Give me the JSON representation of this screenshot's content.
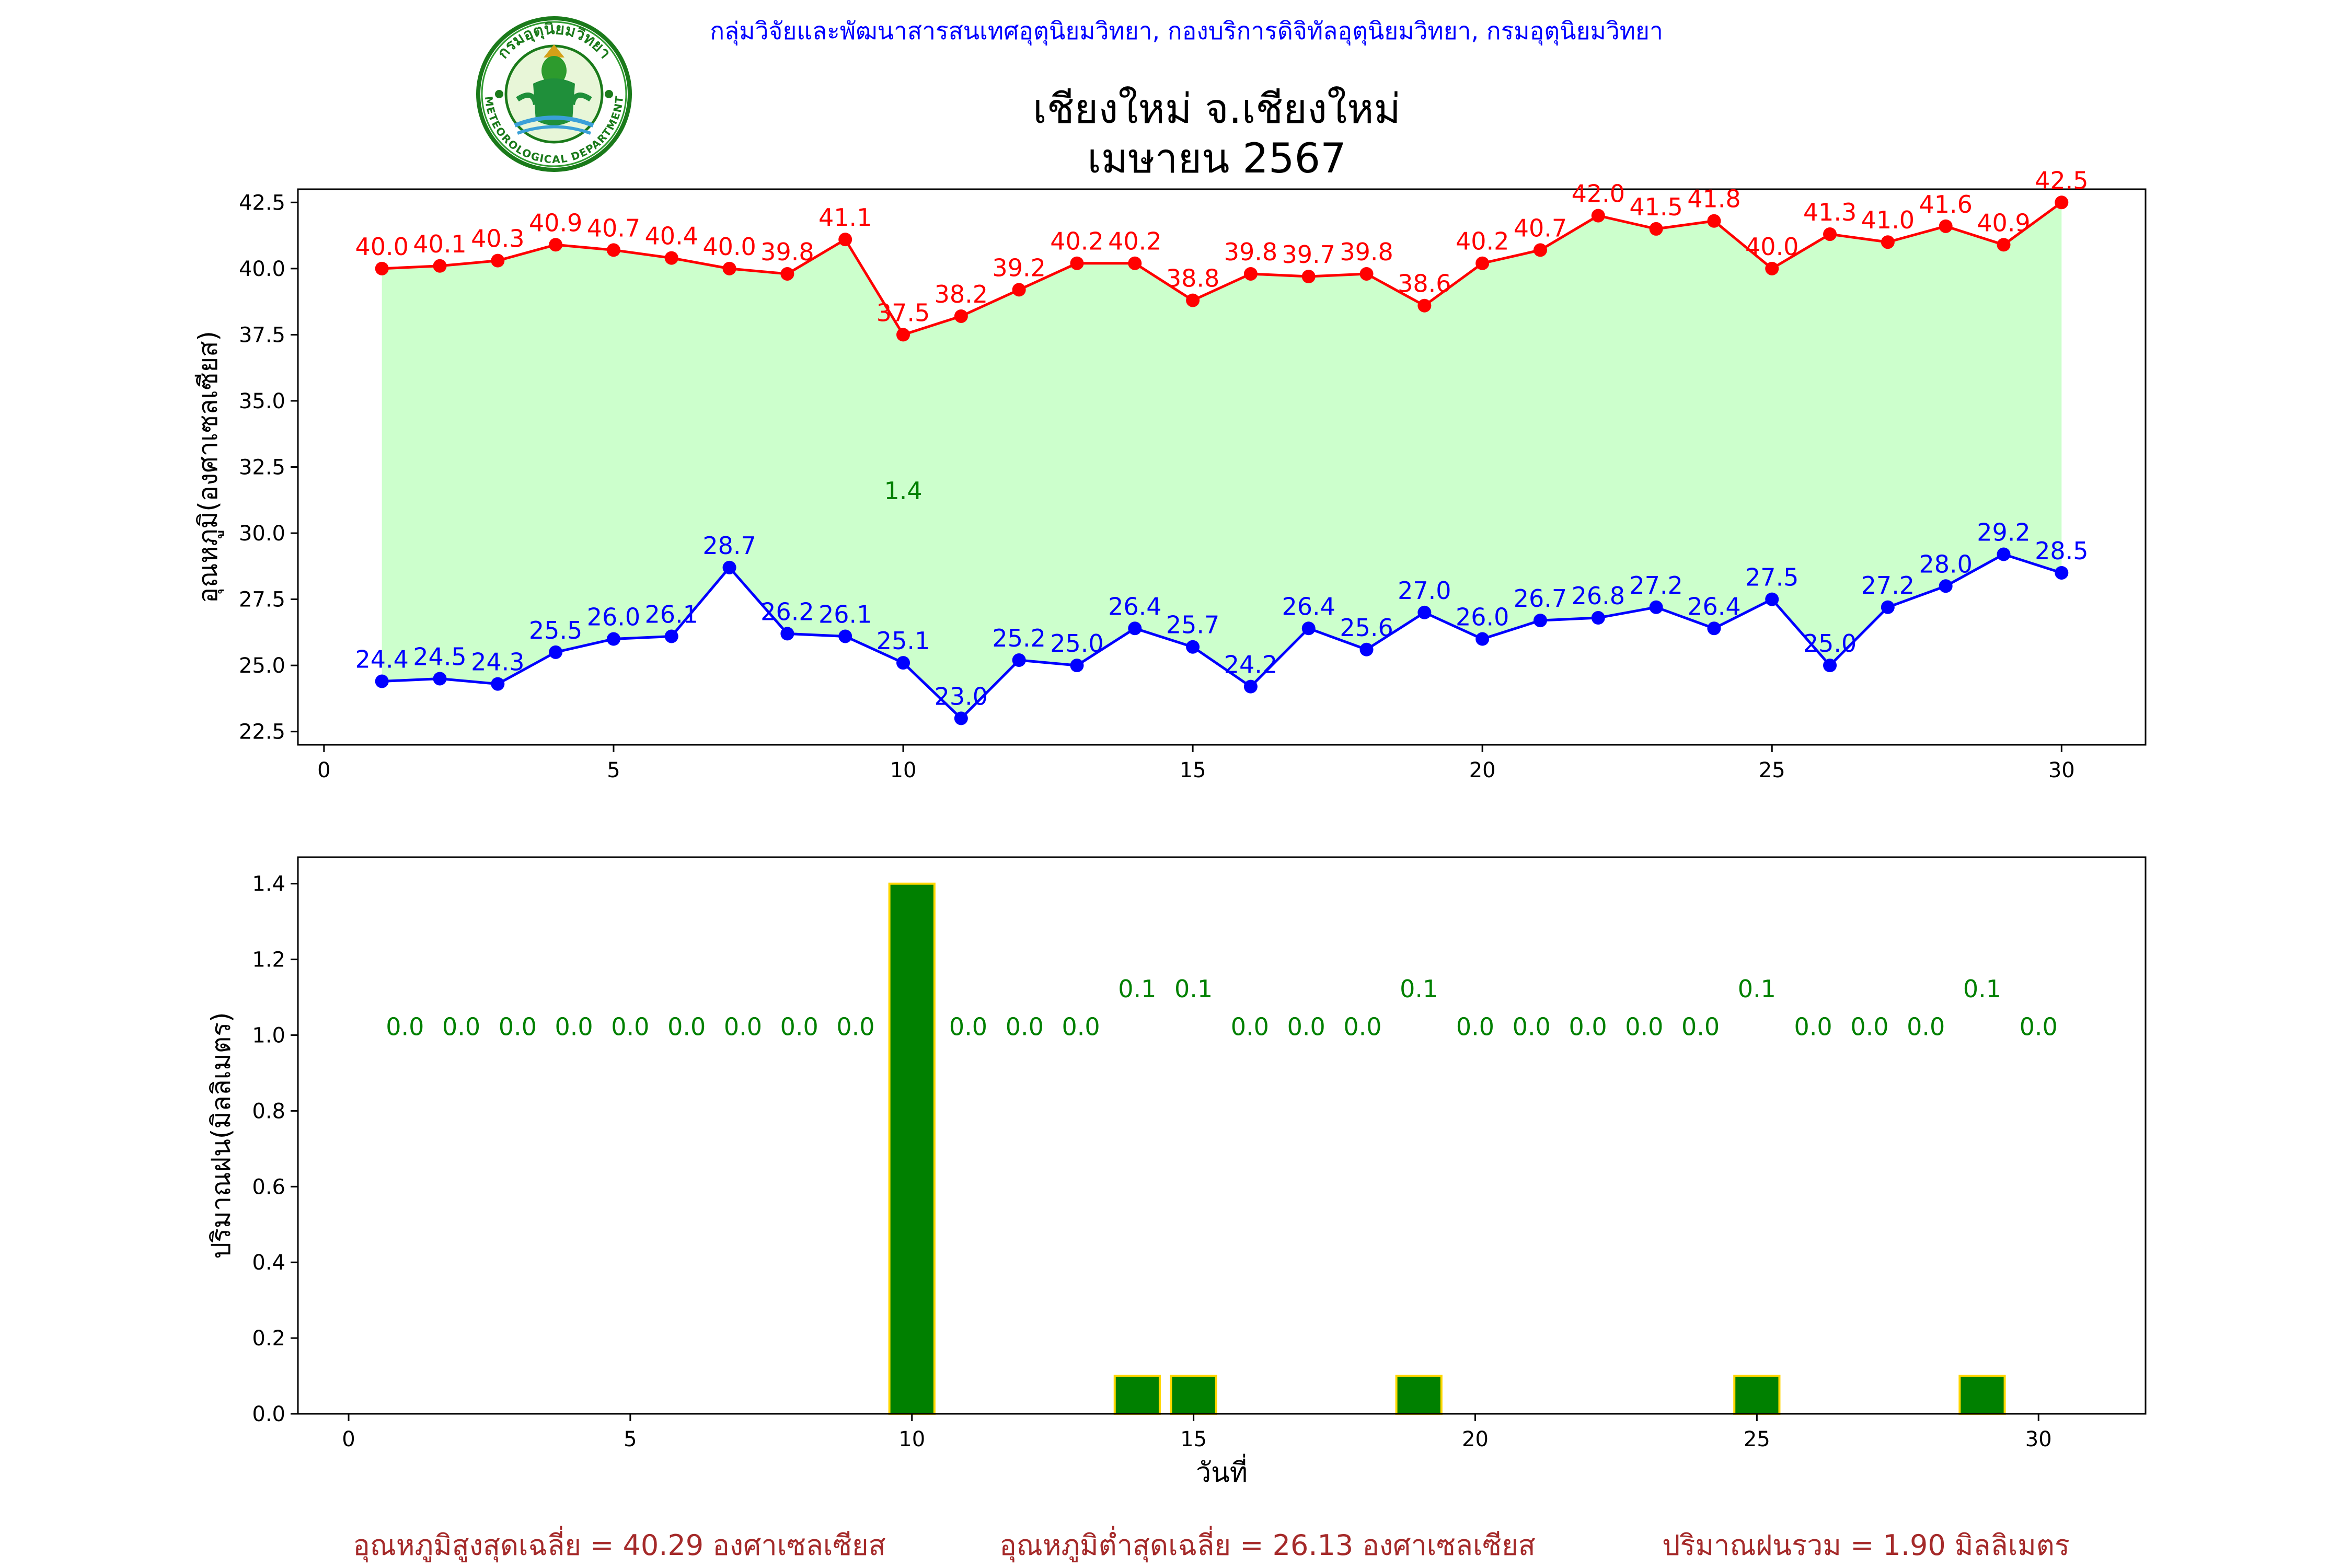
{
  "header": {
    "agency": "กลุ่มวิจัยและพัฒนาสารสนเทศอุตุนิยมวิทยา, กองบริการดิจิทัลอุตุนิยมวิทยา, กรมอุตุนิยมวิทยา",
    "title_line1": "เชียงใหม่ จ.เชียงใหม่",
    "title_line2": "เมษายน 2567",
    "seal_top_text": "กรมอุตุนิยมวิทยา",
    "seal_bottom_text": "METEOROLOGICAL DEPARTMENT"
  },
  "colors": {
    "tmax": "#ff0000",
    "tmin": "#0000ff",
    "fill": "#ccffcc",
    "rain_bar": "#008000",
    "rain_edge": "#ffd700",
    "rain_label": "#008000",
    "agency_text": "#0000ff",
    "summary_text": "#a52a2a"
  },
  "chart_data": [
    {
      "type": "line",
      "ylabel": "อุณหภูมิ(องศาเซลเซียส)",
      "xlabel": "",
      "x": [
        1,
        2,
        3,
        4,
        5,
        6,
        7,
        8,
        9,
        10,
        11,
        12,
        13,
        14,
        15,
        16,
        17,
        18,
        19,
        20,
        21,
        22,
        23,
        24,
        25,
        26,
        27,
        28,
        29,
        30
      ],
      "xlim": [
        -0.45,
        31.45
      ],
      "ylim": [
        22.0,
        43.0
      ],
      "xticks": [
        0,
        5,
        10,
        15,
        20,
        25,
        30
      ],
      "yticks": [
        22.5,
        25.0,
        27.5,
        30.0,
        32.5,
        35.0,
        37.5,
        40.0,
        42.5
      ],
      "series": [
        {
          "key": "tmax",
          "values": [
            40.0,
            40.1,
            40.3,
            40.9,
            40.7,
            40.4,
            40.0,
            39.8,
            41.1,
            37.5,
            38.2,
            39.2,
            40.2,
            40.2,
            38.8,
            39.8,
            39.7,
            39.8,
            38.6,
            40.2,
            40.7,
            42.0,
            41.5,
            41.8,
            40.0,
            41.3,
            41.0,
            41.6,
            40.9,
            42.5
          ]
        },
        {
          "key": "tmin",
          "values": [
            24.4,
            24.5,
            24.3,
            25.5,
            26.0,
            26.1,
            28.7,
            26.2,
            26.1,
            25.1,
            23.0,
            25.2,
            25.0,
            26.4,
            25.7,
            24.2,
            26.4,
            25.6,
            27.0,
            26.0,
            26.7,
            26.8,
            27.2,
            26.4,
            27.5,
            25.0,
            27.2,
            28.0,
            29.2,
            28.5
          ]
        }
      ],
      "annotation": {
        "text": "1.4",
        "x": 10,
        "y": 31.6
      }
    },
    {
      "type": "bar",
      "ylabel": "ปริมาณฝน(มิลลิเมตร)",
      "xlabel": "วันที่",
      "x": [
        1,
        2,
        3,
        4,
        5,
        6,
        7,
        8,
        9,
        10,
        11,
        12,
        13,
        14,
        15,
        16,
        17,
        18,
        19,
        20,
        21,
        22,
        23,
        24,
        25,
        26,
        27,
        28,
        29,
        30
      ],
      "values": [
        0,
        0,
        0,
        0,
        0,
        0,
        0,
        0,
        0,
        1.4,
        0,
        0,
        0,
        0.1,
        0.1,
        0,
        0,
        0,
        0.1,
        0,
        0,
        0,
        0,
        0,
        0.1,
        0,
        0,
        0,
        0.1,
        0
      ],
      "labels": [
        "0.0",
        "0.0",
        "0.0",
        "0.0",
        "0.0",
        "0.0",
        "0.0",
        "0.0",
        "0.0",
        "",
        "0.0",
        "0.0",
        "0.0",
        "0.1",
        "0.1",
        "0.0",
        "0.0",
        "0.0",
        "0.1",
        "0.0",
        "0.0",
        "0.0",
        "0.0",
        "0.0",
        "0.1",
        "0.0",
        "0.0",
        "0.0",
        "0.1",
        "0.0"
      ],
      "xlim": [
        -0.9,
        31.9
      ],
      "ylim": [
        0,
        1.47
      ],
      "xticks": [
        0,
        5,
        10,
        15,
        20,
        25,
        30
      ],
      "yticks": [
        0.0,
        0.2,
        0.4,
        0.6,
        0.8,
        1.0,
        1.2,
        1.4
      ]
    }
  ],
  "summary": {
    "tmax_avg": "อุณหภูมิสูงสุดเฉลี่ย = 40.29 องศาเซลเซียส",
    "tmin_avg": "อุณหภูมิต่ำสุดเฉลี่ย = 26.13 องศาเซลเซียส",
    "rain_total": "ปริมาณฝนรวม = 1.90 มิลลิเมตร"
  }
}
